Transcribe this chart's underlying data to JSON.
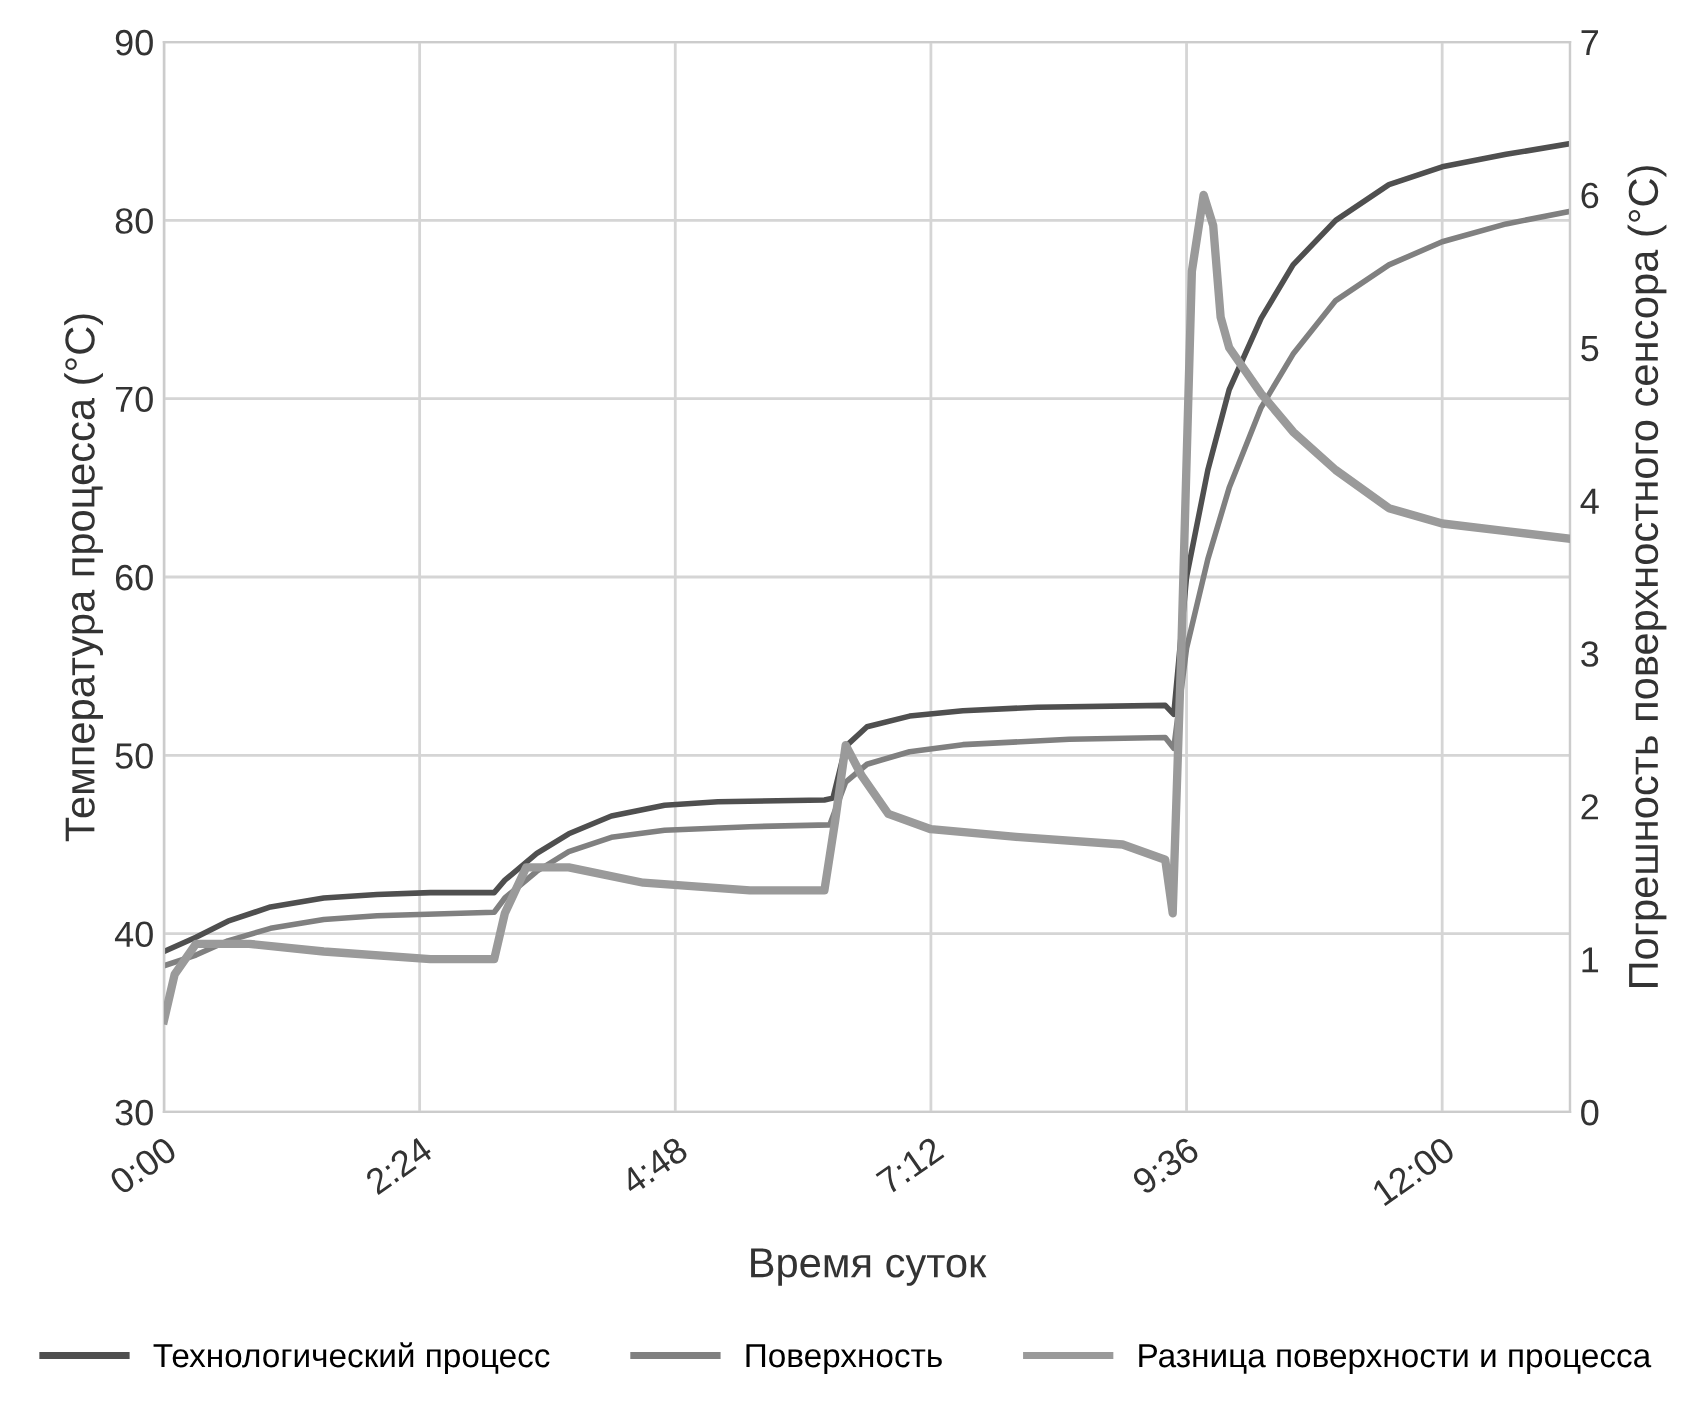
{
  "chart_data": {
    "type": "line",
    "xlabel": "Время суток",
    "ylabel": "Температура процесса (°C)",
    "y2label": "Погрешность поверхностного сенсора (°C)",
    "xlim": [
      0,
      13.2
    ],
    "xticks": [
      {
        "value": 0,
        "label": "0:00"
      },
      {
        "value": 2.4,
        "label": "2:24"
      },
      {
        "value": 4.8,
        "label": "4:48"
      },
      {
        "value": 7.2,
        "label": "7:12"
      },
      {
        "value": 9.6,
        "label": "9:36"
      },
      {
        "value": 12,
        "label": "12:00"
      }
    ],
    "ylim": [
      30,
      90
    ],
    "yticks": [
      30,
      40,
      50,
      60,
      70,
      80,
      90
    ],
    "y2lim": [
      0,
      7
    ],
    "y2ticks": [
      0,
      1,
      2,
      3,
      4,
      5,
      6,
      7
    ],
    "grid": true,
    "legend": "bottom",
    "series": [
      {
        "name": "Технологический процесс",
        "color": "#4f4f4f",
        "x": [
          0,
          0.3,
          0.6,
          1.0,
          1.5,
          2.0,
          2.5,
          3.1,
          3.2,
          3.5,
          3.8,
          4.2,
          4.7,
          5.2,
          6.2,
          6.28,
          6.4,
          6.6,
          7.0,
          7.5,
          8.2,
          9.4,
          9.48,
          9.6,
          9.8,
          10.0,
          10.3,
          10.6,
          11.0,
          11.5,
          12.0,
          12.6,
          13.2
        ],
        "values": [
          39,
          39.8,
          40.7,
          41.5,
          42.0,
          42.2,
          42.3,
          42.3,
          43.0,
          44.5,
          45.6,
          46.6,
          47.2,
          47.4,
          47.5,
          47.6,
          50.5,
          51.6,
          52.2,
          52.5,
          52.7,
          52.8,
          52.3,
          60,
          66,
          70.5,
          74.5,
          77.5,
          80,
          82,
          83.0,
          83.7,
          84.3
        ]
      },
      {
        "name": "Поверхность",
        "color": "#808080",
        "x": [
          0,
          0.3,
          0.6,
          1.0,
          1.5,
          2.0,
          3.1,
          3.2,
          3.5,
          3.8,
          4.2,
          4.7,
          5.5,
          6.25,
          6.4,
          6.6,
          7.0,
          7.5,
          8.5,
          9.4,
          9.48,
          9.6,
          9.8,
          10.0,
          10.3,
          10.6,
          11.0,
          11.5,
          12.0,
          12.6,
          13.2
        ],
        "values": [
          38.2,
          38.8,
          39.6,
          40.3,
          40.8,
          41.0,
          41.2,
          42.0,
          43.5,
          44.6,
          45.4,
          45.8,
          46.0,
          46.1,
          48.5,
          49.5,
          50.2,
          50.6,
          50.9,
          51.0,
          50.4,
          56,
          61,
          65,
          69.5,
          72.5,
          75.5,
          77.5,
          78.8,
          79.8,
          80.5
        ]
      },
      {
        "name": "Разница поверхности и процесса",
        "color": "#9a9a9a",
        "axis": "y2",
        "x": [
          0,
          0.1,
          0.3,
          0.8,
          1.5,
          2.5,
          3.1,
          3.2,
          3.4,
          3.8,
          4.5,
          5.5,
          6.2,
          6.3,
          6.4,
          6.55,
          6.8,
          7.2,
          8.0,
          9.0,
          9.4,
          9.47,
          9.55,
          9.65,
          9.76,
          9.85,
          9.92,
          10.0,
          10.3,
          10.6,
          11.0,
          11.5,
          12.0,
          12.6,
          13.2
        ],
        "values": [
          0.6,
          0.9,
          1.1,
          1.1,
          1.05,
          1.0,
          1.0,
          1.3,
          1.6,
          1.6,
          1.5,
          1.45,
          1.45,
          1.9,
          2.4,
          2.2,
          1.95,
          1.85,
          1.8,
          1.75,
          1.65,
          1.3,
          3.0,
          5.5,
          6.0,
          5.8,
          5.2,
          5.0,
          4.7,
          4.45,
          4.2,
          3.95,
          3.85,
          3.8,
          3.75
        ]
      }
    ]
  }
}
